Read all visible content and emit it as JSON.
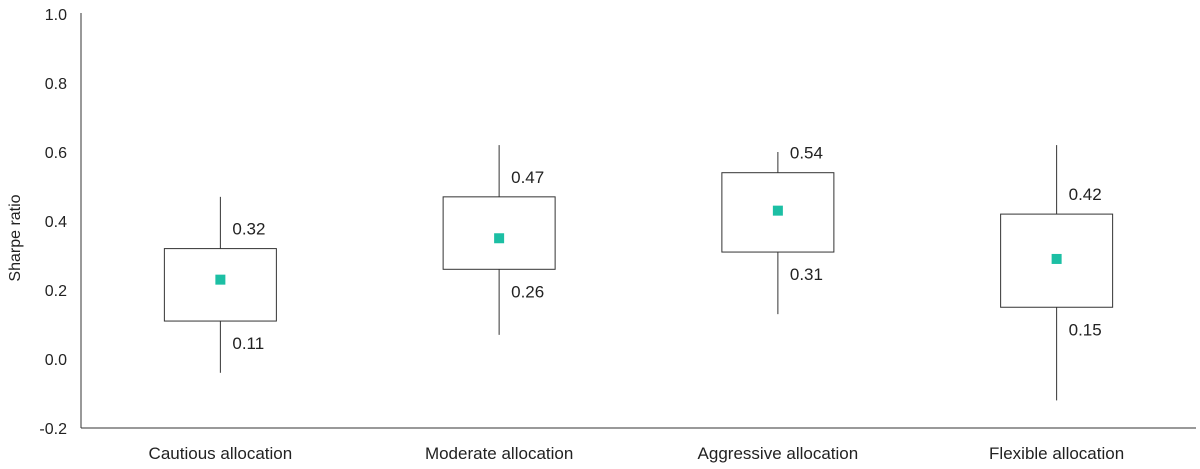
{
  "chart_data": {
    "type": "box",
    "title": "",
    "xlabel": "",
    "ylabel": "Sharpe ratio",
    "ylim": [
      -0.2,
      1.0
    ],
    "y_ticks": [
      "1.0",
      "0.8",
      "0.6",
      "0.4",
      "0.2",
      "0.0",
      "-0.2"
    ],
    "y_tick_values": [
      1.0,
      0.8,
      0.6,
      0.4,
      0.2,
      0.0,
      -0.2
    ],
    "grid": false,
    "categories": [
      "Cautious allocation",
      "Moderate allocation",
      "Aggressive allocation",
      "Flexible allocation"
    ],
    "boxes": [
      {
        "category": "Cautious allocation",
        "whisker_low": -0.04,
        "q1": 0.11,
        "marker": 0.23,
        "q3": 0.32,
        "whisker_high": 0.47,
        "q1_label": "0.11",
        "q3_label": "0.32"
      },
      {
        "category": "Moderate allocation",
        "whisker_low": 0.07,
        "q1": 0.26,
        "marker": 0.35,
        "q3": 0.47,
        "whisker_high": 0.62,
        "q1_label": "0.26",
        "q3_label": "0.47"
      },
      {
        "category": "Aggressive allocation",
        "whisker_low": 0.13,
        "q1": 0.31,
        "marker": 0.43,
        "q3": 0.54,
        "whisker_high": 0.6,
        "q1_label": "0.31",
        "q3_label": "0.54"
      },
      {
        "category": "Flexible allocation",
        "whisker_low": -0.12,
        "q1": 0.15,
        "marker": 0.29,
        "q3": 0.42,
        "whisker_high": 0.62,
        "q1_label": "0.15",
        "q3_label": "0.42"
      }
    ],
    "colors": {
      "marker": "#1cbfa4",
      "box_stroke": "#333333",
      "axis": "#333333"
    }
  }
}
